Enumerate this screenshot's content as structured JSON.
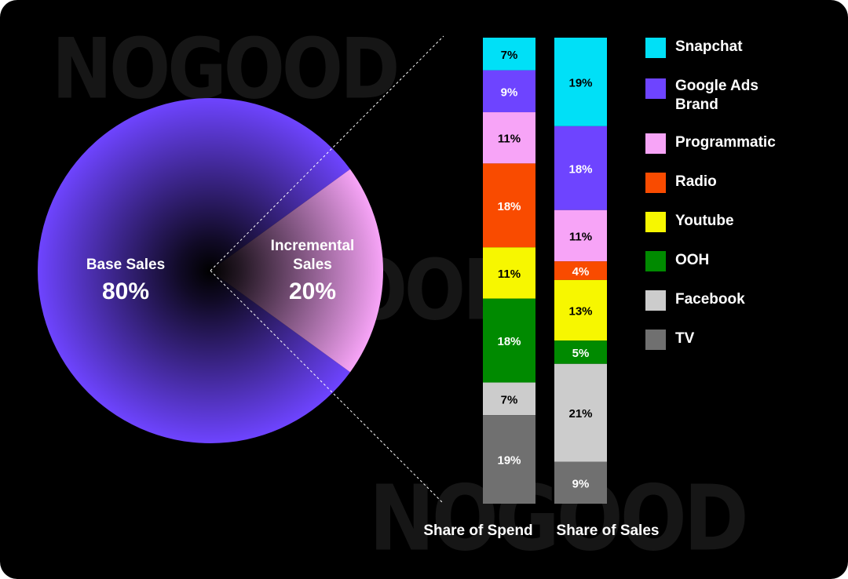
{
  "watermark": "NOGOOD",
  "chart_data": [
    {
      "type": "pie",
      "slices": [
        {
          "label": "Base Sales",
          "value": 80,
          "value_label": "80%",
          "color": "#6e44ff"
        },
        {
          "label_lines": [
            "Incremental",
            "Sales"
          ],
          "value": 20,
          "value_label": "20%",
          "color": "#f7a4f7"
        }
      ]
    },
    {
      "type": "bar",
      "stacked": true,
      "categories": [
        "Share of Spend",
        "Share of Sales"
      ],
      "series": [
        {
          "name": "Snapchat",
          "color": "#00e0f7",
          "values": [
            7,
            19
          ],
          "labels": [
            "7%",
            "19%"
          ],
          "text_color": "#000000"
        },
        {
          "name": "Google Ads Brand",
          "color": "#6e44ff",
          "values": [
            9,
            18
          ],
          "labels": [
            "9%",
            "18%"
          ],
          "text_color": "#ffffff"
        },
        {
          "name": "Programmatic",
          "color": "#f7a4f7",
          "values": [
            11,
            11
          ],
          "labels": [
            "11%",
            "11%"
          ],
          "text_color": "#000000"
        },
        {
          "name": "Radio",
          "color": "#f94b00",
          "values": [
            18,
            4
          ],
          "labels": [
            "18%",
            "4%"
          ],
          "text_color": "#ffffff"
        },
        {
          "name": "Youtube",
          "color": "#f7f700",
          "values": [
            11,
            13
          ],
          "labels": [
            "11%",
            "13%"
          ],
          "text_color": "#000000"
        },
        {
          "name": "OOH",
          "color": "#008a00",
          "values": [
            18,
            5
          ],
          "labels": [
            "18%",
            "5%"
          ],
          "text_color": "#ffffff"
        },
        {
          "name": "Facebook",
          "color": "#cccccc",
          "values": [
            7,
            21
          ],
          "labels": [
            "7%",
            "21%"
          ],
          "text_color": "#000000"
        },
        {
          "name": "TV",
          "color": "#707070",
          "values": [
            19,
            9
          ],
          "labels": [
            "19%",
            "9%"
          ],
          "text_color": "#ffffff"
        }
      ]
    }
  ],
  "legend": [
    {
      "label": "Snapchat",
      "color": "#00e0f7"
    },
    {
      "label": "Google Ads Brand",
      "color": "#6e44ff"
    },
    {
      "label": "Programmatic",
      "color": "#f7a4f7"
    },
    {
      "label": "Radio",
      "color": "#f94b00"
    },
    {
      "label": "Youtube",
      "color": "#f7f700"
    },
    {
      "label": "OOH",
      "color": "#008a00"
    },
    {
      "label": "Facebook",
      "color": "#cccccc"
    },
    {
      "label": "TV",
      "color": "#707070"
    }
  ]
}
